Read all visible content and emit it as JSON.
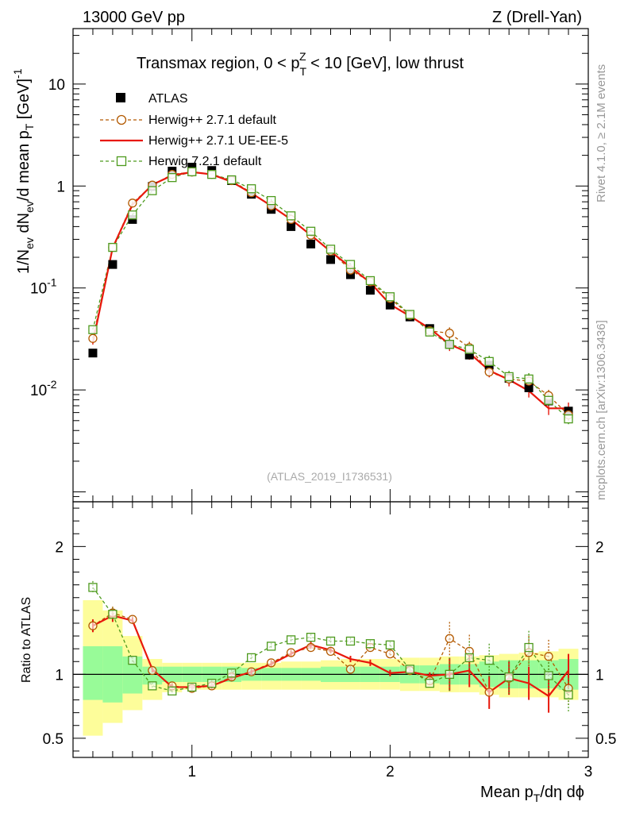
{
  "header": {
    "left": "13000 GeV pp",
    "right": "Z (Drell-Yan)"
  },
  "plot_title": {
    "prefix": "Transmax region, 0 < p",
    "sup": "Z",
    "sub": "T",
    "suffix": " < 10 [GeV], low thrust"
  },
  "side_labels": {
    "rivet": "Rivet 4.1.0, ≥ 2.1M events",
    "mcplots": "mcplots.cern.ch [arXiv:1306.3436]"
  },
  "analysis_ref": "(ATLAS_2019_I1736531)",
  "ylabel_main": "1/N_ev dN_ev/d mean p_T [GeV]^-1",
  "ylabel_ratio": "Ratio to ATLAS",
  "xlabel": "Mean p_T/dη dϕ",
  "legend": [
    {
      "label": "ATLAS",
      "color": "#000000",
      "marker": "square-filled"
    },
    {
      "label": "Herwig++ 2.7.1 default",
      "color": "#b35900",
      "marker": "circle-open",
      "dash": true
    },
    {
      "label": "Herwig++ 2.7.1 UE-EE-5",
      "color": "#e8180c",
      "marker": "none",
      "dash": false
    },
    {
      "label": "Herwig 7.2.1 default",
      "color": "#4d9a1d",
      "marker": "square-open",
      "dash": true
    }
  ],
  "chart_data": {
    "type": "scatter",
    "x": [
      0.5,
      0.6,
      0.7,
      0.8,
      0.9,
      1.0,
      1.1,
      1.2,
      1.3,
      1.4,
      1.5,
      1.6,
      1.7,
      1.8,
      1.9,
      2.0,
      2.1,
      2.2,
      2.3,
      2.4,
      2.5,
      2.6,
      2.7,
      2.8,
      2.9
    ],
    "xlim": [
      0.4,
      3.0
    ],
    "xticks": [
      "1",
      "2",
      "3"
    ],
    "main": {
      "yscale": "log",
      "ylim": [
        0.0008,
        35
      ],
      "yticks": [
        "10^-2",
        "10^-1",
        "1",
        "10"
      ],
      "series": [
        {
          "name": "ATLAS",
          "values": [
            0.023,
            0.17,
            0.47,
            0.99,
            1.4,
            1.53,
            1.42,
            1.13,
            0.83,
            0.59,
            0.4,
            0.27,
            0.19,
            0.135,
            0.095,
            0.068,
            0.052,
            0.04,
            0.028,
            0.022,
            0.0175,
            0.013,
            0.0105,
            0.0078,
            0.0062
          ]
        },
        {
          "name": "Herwig++ 2.7.1 default",
          "values": [
            0.032,
            0.25,
            0.68,
            1.02,
            1.3,
            1.37,
            1.3,
            1.13,
            0.86,
            0.64,
            0.47,
            0.33,
            0.23,
            0.15,
            0.115,
            0.079,
            0.054,
            0.038,
            0.036,
            0.026,
            0.015,
            0.0128,
            0.0122,
            0.0088,
            0.0057
          ]
        },
        {
          "name": "Herwig++ 2.7.1 UE-EE-5",
          "values": [
            0.029,
            0.248,
            0.655,
            1.03,
            1.27,
            1.37,
            1.3,
            1.1,
            0.85,
            0.64,
            0.47,
            0.33,
            0.228,
            0.16,
            0.113,
            0.069,
            0.053,
            0.04,
            0.028,
            0.023,
            0.0155,
            0.0126,
            0.0098,
            0.0066,
            0.0066
          ]
        },
        {
          "name": "Herwig 7.2.1 default",
          "values": [
            0.039,
            0.25,
            0.52,
            0.9,
            1.21,
            1.38,
            1.3,
            1.15,
            0.94,
            0.72,
            0.51,
            0.36,
            0.24,
            0.17,
            0.118,
            0.082,
            0.055,
            0.037,
            0.028,
            0.025,
            0.019,
            0.0135,
            0.0128,
            0.0079,
            0.0052
          ]
        }
      ]
    },
    "ratio": {
      "ylim": [
        0.35,
        2.35
      ],
      "yticks": [
        "0.5",
        "1",
        "2"
      ],
      "band_inner": [
        0.8,
        0.78,
        0.85,
        0.92,
        0.94,
        0.94,
        0.94,
        0.94,
        0.95,
        0.95,
        0.95,
        0.95,
        0.94,
        0.94,
        0.94,
        0.94,
        0.93,
        0.93,
        0.92,
        0.92,
        0.9,
        0.89,
        0.89,
        0.89,
        0.88
      ],
      "band_inner_hi": [
        1.22,
        1.22,
        1.14,
        1.06,
        1.06,
        1.06,
        1.06,
        1.06,
        1.05,
        1.05,
        1.05,
        1.05,
        1.06,
        1.06,
        1.06,
        1.06,
        1.07,
        1.07,
        1.08,
        1.08,
        1.1,
        1.11,
        1.11,
        1.11,
        1.12
      ],
      "band_outer": [
        0.52,
        0.62,
        0.72,
        0.8,
        0.86,
        0.88,
        0.88,
        0.88,
        0.88,
        0.88,
        0.88,
        0.88,
        0.88,
        0.88,
        0.88,
        0.88,
        0.87,
        0.87,
        0.86,
        0.86,
        0.84,
        0.82,
        0.82,
        0.82,
        0.8
      ],
      "band_outer_hi": [
        1.58,
        1.5,
        1.3,
        1.12,
        1.09,
        1.09,
        1.09,
        1.09,
        1.09,
        1.09,
        1.1,
        1.1,
        1.11,
        1.12,
        1.12,
        1.12,
        1.13,
        1.13,
        1.14,
        1.14,
        1.15,
        1.16,
        1.17,
        1.18,
        1.2
      ],
      "series": [
        {
          "name": "Herwig++ 2.7.1 default",
          "values": [
            1.38,
            1.48,
            1.43,
            1.03,
            0.91,
            0.89,
            0.91,
            0.98,
            1.02,
            1.09,
            1.17,
            1.21,
            1.18,
            1.04,
            1.21,
            1.16,
            1.03,
            0.95,
            1.28,
            1.18,
            0.86,
            0.97,
            1.17,
            1.14,
            0.89
          ]
        },
        {
          "name": "Herwig++ 2.7.1 UE-EE-5",
          "values": [
            1.38,
            1.46,
            1.42,
            1.04,
            0.9,
            0.9,
            0.91,
            0.97,
            1.02,
            1.08,
            1.16,
            1.23,
            1.19,
            1.12,
            1.09,
            1.01,
            1.02,
            0.99,
            1.0,
            1.03,
            0.86,
            0.97,
            0.93,
            0.83,
            1.03
          ]
        },
        {
          "name": "Herwig 7.2.1 default",
          "values": [
            1.68,
            1.47,
            1.11,
            0.91,
            0.87,
            0.9,
            0.93,
            1.01,
            1.13,
            1.22,
            1.27,
            1.29,
            1.26,
            1.26,
            1.24,
            1.23,
            1.04,
            0.93,
            1.0,
            1.13,
            1.11,
            0.98,
            1.21,
            0.99,
            0.84
          ]
        }
      ]
    }
  }
}
